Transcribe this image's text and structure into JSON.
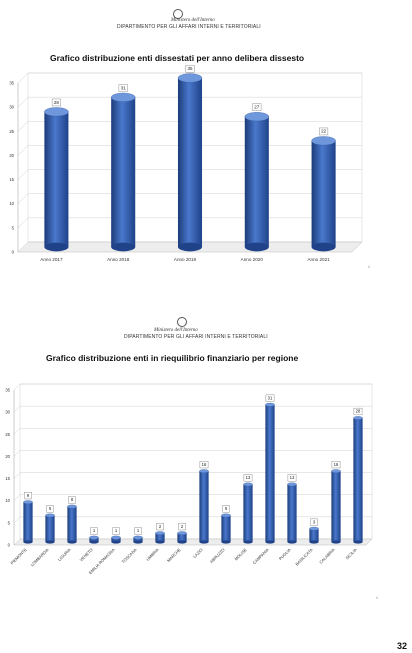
{
  "sections": [
    {
      "ministry": "Ministero dell'Interno",
      "department": "DIPARTIMENTO PER GLI AFFARI INTERNI E TERRITORIALI"
    },
    {
      "ministry": "Ministero dell'Interno",
      "department": "DIPARTIMENTO PER GLI AFFARI INTERNI E TERRITORIALI"
    }
  ],
  "chart_data": [
    {
      "type": "bar",
      "title": "Grafico distribuzione enti dissestati per anno delibera dissesto",
      "categories": [
        "Anno 2017",
        "Anno 2018",
        "Anno 2019",
        "Anno 2020",
        "Anno 2021"
      ],
      "values": [
        28,
        31,
        35,
        27,
        22
      ],
      "data_labels": [
        "28",
        "31",
        "35",
        "27",
        "22"
      ],
      "ylim": [
        0,
        35
      ],
      "yticks": [
        "0",
        "5",
        "10",
        "15",
        "20",
        "25",
        "30",
        "35"
      ],
      "grid": true,
      "bar_color": "#2f5bb0"
    },
    {
      "type": "bar",
      "title": "Grafico distribuzione enti in riequilibrio finanziario per regione",
      "categories": [
        "PIEMONTE",
        "LOMBARDIA",
        "LIGURIA",
        "VENETO",
        "EMILIA ROMAGNA",
        "TOSCANA",
        "UMBRIA",
        "MARCHE",
        "LAZIO",
        "ABRUZZO",
        "MOLISE",
        "CAMPANIA",
        "PUGLIA",
        "BASILICATA",
        "CALABRIA",
        "SICILIA"
      ],
      "values": [
        9,
        6,
        8,
        1,
        1,
        1,
        2,
        2,
        16,
        6,
        13,
        31,
        13,
        3,
        16,
        28
      ],
      "data_labels": [
        "9",
        "6",
        "8",
        "1",
        "1",
        "1",
        "2",
        "2",
        "16",
        "6",
        "13",
        "31",
        "13",
        "3",
        "16",
        "28"
      ],
      "ylim": [
        0,
        35
      ],
      "yticks": [
        "0",
        "5",
        "10",
        "15",
        "20",
        "25",
        "30",
        "35"
      ],
      "grid": true,
      "bar_color": "#2f5bb0"
    }
  ],
  "page_number": "32",
  "footer_marks": [
    "6",
    "6"
  ]
}
